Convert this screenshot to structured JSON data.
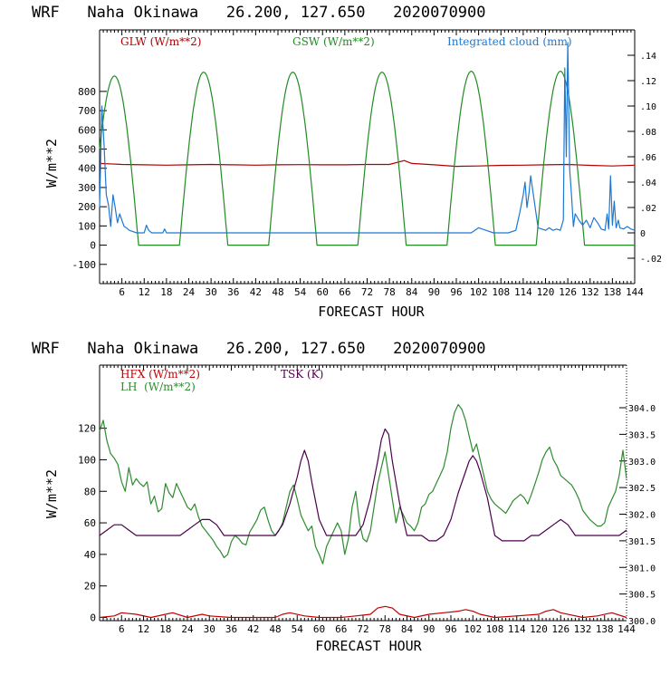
{
  "colors": {
    "glw": "#b00000",
    "gsw": "#228b22",
    "cloud": "#1e78d2",
    "hfx": "#c00000",
    "lh": "#2e8b2e",
    "tsk": "#4b004b"
  },
  "chart_data": [
    {
      "type": "line",
      "title": "WRF   Naha Okinawa   26.200, 127.650   2020070900",
      "xlabel": "FORECAST HOUR",
      "ylabel": "W/m**2",
      "xlim": [
        0,
        144
      ],
      "ylim": [
        -200,
        1120
      ],
      "y2lim": [
        -0.04,
        0.16
      ],
      "xticks": [
        "6",
        "12",
        "18",
        "24",
        "30",
        "36",
        "42",
        "48",
        "54",
        "60",
        "66",
        "72",
        "78",
        "84",
        "90",
        "96",
        "102",
        "108",
        "114",
        "120",
        "126",
        "132",
        "138",
        "144"
      ],
      "yticks": [
        "-100",
        "0",
        "100",
        "200",
        "300",
        "400",
        "500",
        "600",
        "700",
        "800"
      ],
      "y2ticks": [
        "-.02",
        "0",
        ".02",
        ".04",
        ".06",
        ".08",
        ".10",
        ".12",
        ".14"
      ],
      "legend": [
        {
          "key": "glw",
          "label": "GLW (W/m**2)"
        },
        {
          "key": "gsw",
          "label": "GSW (W/m**2)"
        },
        {
          "key": "cloud",
          "label": "Integrated cloud (mm)"
        }
      ],
      "series": [
        {
          "name": "GLW (W/m**2)",
          "axis": "left",
          "x": [
            0,
            6,
            12,
            18,
            24,
            30,
            36,
            42,
            48,
            54,
            60,
            66,
            72,
            78,
            82,
            84,
            90,
            96,
            102,
            108,
            114,
            120,
            126,
            132,
            138,
            144
          ],
          "values": [
            425,
            420,
            418,
            416,
            418,
            420,
            418,
            416,
            418,
            419,
            418,
            418,
            420,
            420,
            440,
            425,
            418,
            410,
            412,
            415,
            416,
            418,
            420,
            415,
            412,
            416
          ]
        },
        {
          "name": "GSW (W/m**2)",
          "axis": "left",
          "sun": {
            "peaks": [
              4,
              28,
              52,
              76,
              100,
              124
            ],
            "half_width": 6.5,
            "amplitudes": [
              880,
              900,
              900,
              900,
              905,
              905
            ]
          }
        },
        {
          "name": "Integrated cloud (mm)",
          "axis": "right",
          "x": [
            0,
            0.6,
            1.2,
            1.8,
            2.4,
            3,
            3.6,
            4.2,
            4.8,
            5.4,
            6,
            6.6,
            7.2,
            8,
            10,
            12,
            12.6,
            13.2,
            14,
            17,
            17.5,
            18,
            20,
            24,
            30,
            36,
            42,
            48,
            54,
            60,
            66,
            72,
            80,
            84,
            90,
            96,
            100,
            102,
            106,
            110,
            112,
            113,
            114,
            114.5,
            115,
            115.6,
            116,
            118,
            120,
            121,
            122,
            123,
            124,
            124.8,
            125.2,
            125.6,
            126,
            126.5,
            127,
            127.5,
            128,
            129,
            130,
            131,
            132,
            133,
            134,
            135,
            136,
            136.6,
            137,
            137.5,
            138,
            138.5,
            139,
            139.6,
            140,
            141,
            142,
            143,
            144
          ],
          "values": [
            0.02,
            0.1,
            0.07,
            0.03,
            0.022,
            0.005,
            0.03,
            0.02,
            0.008,
            0.015,
            0.01,
            0.005,
            0.004,
            0.002,
            0,
            0,
            0.006,
            0.002,
            0,
            0,
            0.003,
            0,
            0,
            0,
            0,
            0,
            0,
            0,
            0,
            0,
            0,
            0,
            0,
            0,
            0,
            0,
            0,
            0.004,
            0,
            0,
            0.002,
            0.015,
            0.03,
            0.04,
            0.02,
            0.032,
            0.045,
            0.004,
            0.002,
            0.004,
            0.002,
            0.003,
            0.002,
            0.01,
            0.13,
            0.06,
            0.15,
            0.05,
            0.03,
            0.005,
            0.015,
            0.01,
            0.006,
            0.01,
            0.004,
            0.012,
            0.008,
            0.003,
            0.002,
            0.015,
            0.003,
            0.045,
            0.006,
            0.025,
            0.004,
            0.01,
            0.004,
            0.003,
            0.005,
            0.003,
            0.002
          ]
        }
      ]
    },
    {
      "type": "line",
      "title": "WRF   Naha Okinawa   26.200, 127.650   2020070900",
      "xlabel": "FORECAST HOUR",
      "ylabel": "W/m**2",
      "xlim": [
        0,
        144
      ],
      "ylim": [
        -2,
        160
      ],
      "y2lim": [
        300.0,
        304.8
      ],
      "xticks": [
        "6",
        "12",
        "18",
        "24",
        "30",
        "36",
        "42",
        "48",
        "54",
        "60",
        "66",
        "72",
        "78",
        "84",
        "90",
        "96",
        "102",
        "108",
        "114",
        "120",
        "126",
        "132",
        "138",
        "144"
      ],
      "yticks": [
        "0",
        "20",
        "40",
        "60",
        "80",
        "100",
        "120"
      ],
      "y2ticks": [
        "300.0",
        "300.5",
        "301.0",
        "301.5",
        "302.0",
        "302.5",
        "303.0",
        "303.5",
        "304.0"
      ],
      "legend": [
        {
          "key": "hfx",
          "label": "HFX (W/m**2)"
        },
        {
          "key": "lh",
          "label": "LH  (W/m**2)"
        },
        {
          "key": "tsk",
          "label": "TSK (K)"
        }
      ],
      "series": [
        {
          "name": "HFX (W/m**2)",
          "axis": "left",
          "x": [
            0,
            4,
            6,
            10,
            14,
            18,
            20,
            24,
            28,
            30,
            36,
            42,
            48,
            50,
            52,
            56,
            60,
            66,
            70,
            74,
            76,
            78,
            80,
            82,
            86,
            90,
            94,
            98,
            100,
            102,
            104,
            108,
            114,
            120,
            122,
            124,
            126,
            132,
            136,
            140,
            144
          ],
          "values": [
            0,
            1,
            3,
            2,
            0,
            2,
            3,
            0,
            2,
            1,
            0,
            0,
            0,
            2,
            3,
            1,
            0,
            0,
            1,
            2,
            6,
            7,
            6,
            2,
            0,
            2,
            3,
            4,
            5,
            4,
            2,
            0,
            1,
            2,
            4,
            5,
            3,
            0,
            1,
            3,
            0
          ]
        },
        {
          "name": "LH  (W/m**2)",
          "axis": "left",
          "x": [
            0,
            1,
            2,
            3,
            4,
            5,
            6,
            7,
            8,
            9,
            10,
            11,
            12,
            13,
            14,
            15,
            16,
            17,
            18,
            19,
            20,
            21,
            22,
            23,
            24,
            25,
            26,
            27,
            28,
            29,
            30,
            31,
            32,
            33,
            34,
            35,
            36,
            37,
            38,
            39,
            40,
            41,
            42,
            43,
            44,
            45,
            46,
            47,
            48,
            49,
            50,
            51,
            52,
            53,
            54,
            55,
            56,
            57,
            58,
            59,
            60,
            61,
            62,
            63,
            64,
            65,
            66,
            67,
            68,
            69,
            70,
            71,
            72,
            73,
            74,
            75,
            76,
            77,
            78,
            79,
            80,
            81,
            82,
            83,
            84,
            85,
            86,
            87,
            88,
            89,
            90,
            91,
            92,
            93,
            94,
            95,
            96,
            97,
            98,
            99,
            100,
            101,
            102,
            103,
            104,
            105,
            106,
            107,
            108,
            109,
            110,
            111,
            112,
            113,
            114,
            115,
            116,
            117,
            118,
            119,
            120,
            121,
            122,
            123,
            124,
            125,
            126,
            127,
            128,
            129,
            130,
            131,
            132,
            133,
            134,
            135,
            136,
            137,
            138,
            139,
            140,
            141,
            142,
            143,
            144
          ],
          "values": [
            118,
            125,
            112,
            104,
            101,
            97,
            86,
            80,
            95,
            84,
            88,
            85,
            83,
            86,
            72,
            77,
            67,
            69,
            85,
            79,
            76,
            85,
            80,
            75,
            70,
            68,
            72,
            64,
            58,
            55,
            52,
            49,
            45,
            42,
            38,
            40,
            48,
            52,
            50,
            47,
            46,
            54,
            58,
            62,
            68,
            70,
            62,
            55,
            52,
            55,
            60,
            70,
            80,
            84,
            75,
            65,
            60,
            55,
            58,
            45,
            40,
            34,
            45,
            50,
            55,
            60,
            55,
            40,
            50,
            70,
            80,
            60,
            50,
            48,
            55,
            70,
            85,
            95,
            105,
            90,
            75,
            60,
            70,
            65,
            60,
            58,
            55,
            60,
            70,
            72,
            78,
            80,
            85,
            90,
            95,
            105,
            120,
            130,
            135,
            132,
            125,
            115,
            105,
            110,
            100,
            90,
            80,
            75,
            72,
            70,
            68,
            66,
            70,
            74,
            76,
            78,
            76,
            72,
            78,
            85,
            92,
            100,
            105,
            108,
            100,
            96,
            90,
            88,
            86,
            84,
            80,
            75,
            68,
            65,
            62,
            60,
            58,
            58,
            60,
            70,
            75,
            80,
            90,
            106,
            88
          ]
        },
        {
          "name": "TSK (K)",
          "axis": "right",
          "x": [
            0,
            2,
            4,
            6,
            8,
            10,
            12,
            14,
            16,
            18,
            20,
            22,
            24,
            26,
            28,
            30,
            32,
            34,
            36,
            38,
            40,
            42,
            44,
            46,
            48,
            50,
            52,
            54,
            55,
            56,
            57,
            58,
            60,
            62,
            64,
            66,
            68,
            70,
            72,
            74,
            76,
            77,
            78,
            79,
            80,
            82,
            84,
            86,
            88,
            90,
            92,
            94,
            96,
            98,
            100,
            101,
            102,
            103,
            104,
            106,
            108,
            110,
            112,
            114,
            116,
            118,
            120,
            122,
            124,
            126,
            128,
            130,
            132,
            134,
            136,
            138,
            140,
            142,
            144
          ],
          "values": [
            301.6,
            301.7,
            301.8,
            301.8,
            301.7,
            301.6,
            301.6,
            301.6,
            301.6,
            301.6,
            301.6,
            301.6,
            301.7,
            301.8,
            301.9,
            301.9,
            301.8,
            301.6,
            301.6,
            301.6,
            301.6,
            301.6,
            301.6,
            301.6,
            301.6,
            301.8,
            302.2,
            302.7,
            303.0,
            303.2,
            303.0,
            302.6,
            301.9,
            301.6,
            301.6,
            301.6,
            301.6,
            301.6,
            301.8,
            302.3,
            303.0,
            303.4,
            303.6,
            303.5,
            303.0,
            302.2,
            301.6,
            301.6,
            301.6,
            301.5,
            301.5,
            301.6,
            301.9,
            302.4,
            302.8,
            303.0,
            303.1,
            303.0,
            302.8,
            302.3,
            301.6,
            301.5,
            301.5,
            301.5,
            301.5,
            301.6,
            301.6,
            301.7,
            301.8,
            301.9,
            301.8,
            301.6,
            301.6,
            301.6,
            301.6,
            301.6,
            301.6,
            301.6,
            301.7
          ]
        }
      ]
    }
  ]
}
